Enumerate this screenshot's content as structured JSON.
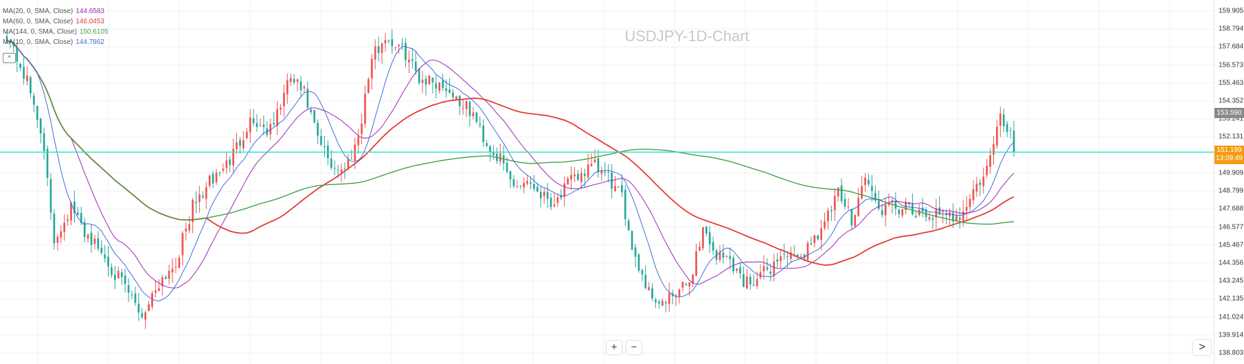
{
  "title": "USDJPY-1D-Chart",
  "colors": {
    "up": "#ef5350",
    "down": "#26a69a",
    "last_price_line": "#2de0c4",
    "grid": "#f0f0f0"
  },
  "legend": [
    {
      "label": "MA(20, 0, SMA, Close)",
      "value": "144.6583",
      "color": "#9c27b0"
    },
    {
      "label": "MA(60, 0, SMA, Close)",
      "value": "146.0453",
      "color": "#e53935"
    },
    {
      "label": "MA(144, 0, SMA, Close)",
      "value": "150.6105",
      "color": "#43a047"
    },
    {
      "label": "MA(10, 0, SMA, Close)",
      "value": "144.7862",
      "color": "#3f6bde"
    }
  ],
  "price_axis": {
    "ticks": [
      "159.905",
      "158.794",
      "157.684",
      "156.573",
      "155.463",
      "154.352",
      "153.241",
      "152.131",
      "149.909",
      "148.799",
      "147.688",
      "146.577",
      "145.467",
      "144.356",
      "143.245",
      "142.135",
      "141.024",
      "139.914",
      "138.803"
    ],
    "prev_close_badge": "153.590",
    "last_price_badge": "151.199",
    "countdown": "13:09:49"
  },
  "controls": {
    "zoom_in": "+",
    "zoom_out": "−",
    "collapse": "^",
    "scroll_right": ">"
  },
  "chart_data": {
    "type": "candlestick",
    "title": "USDJPY-1D-Chart",
    "ylim": [
      138.803,
      160.4
    ],
    "last_price": 151.199,
    "series": [
      {
        "name": "MA(20, 0, SMA, Close)",
        "last": 144.6583
      },
      {
        "name": "MA(60, 0, SMA, Close)",
        "last": 146.0453
      },
      {
        "name": "MA(144, 0, SMA, Close)",
        "last": 150.6105
      },
      {
        "name": "MA(10, 0, SMA, Close)",
        "last": 144.7862
      }
    ],
    "anchors": [
      [
        0,
        158.5
      ],
      [
        6,
        155.5
      ],
      [
        10,
        152.7
      ],
      [
        14,
        145.8
      ],
      [
        19,
        147.8
      ],
      [
        22,
        146.6
      ],
      [
        28,
        145.0
      ],
      [
        35,
        142.8
      ],
      [
        40,
        141.1
      ],
      [
        45,
        143.2
      ],
      [
        50,
        144.4
      ],
      [
        55,
        147.8
      ],
      [
        60,
        149.3
      ],
      [
        66,
        150.7
      ],
      [
        72,
        153.2
      ],
      [
        78,
        152.5
      ],
      [
        84,
        155.8
      ],
      [
        88,
        154.8
      ],
      [
        92,
        152.0
      ],
      [
        96,
        150.4
      ],
      [
        100,
        150.1
      ],
      [
        104,
        152.2
      ],
      [
        108,
        157.0
      ],
      [
        112,
        158.3
      ],
      [
        118,
        157.3
      ],
      [
        122,
        155.8
      ],
      [
        126,
        155.6
      ],
      [
        130,
        155.2
      ],
      [
        134,
        154.3
      ],
      [
        138,
        153.5
      ],
      [
        142,
        151.7
      ],
      [
        146,
        150.7
      ],
      [
        150,
        149.1
      ],
      [
        154,
        149.5
      ],
      [
        158,
        148.7
      ],
      [
        162,
        148.1
      ],
      [
        166,
        149.2
      ],
      [
        170,
        149.9
      ],
      [
        174,
        150.3
      ],
      [
        178,
        149.6
      ],
      [
        182,
        148.3
      ],
      [
        186,
        144.7
      ],
      [
        190,
        142.6
      ],
      [
        194,
        141.8
      ],
      [
        198,
        142.4
      ],
      [
        202,
        143.2
      ],
      [
        206,
        146.5
      ],
      [
        210,
        144.8
      ],
      [
        214,
        144.6
      ],
      [
        218,
        143.2
      ],
      [
        222,
        143.4
      ],
      [
        226,
        144.1
      ],
      [
        230,
        145.0
      ],
      [
        234,
        144.4
      ],
      [
        238,
        145.7
      ],
      [
        242,
        146.8
      ],
      [
        246,
        148.6
      ],
      [
        250,
        147.1
      ],
      [
        254,
        149.7
      ],
      [
        258,
        147.6
      ],
      [
        262,
        147.8
      ],
      [
        266,
        147.7
      ],
      [
        270,
        147.2
      ],
      [
        274,
        147.4
      ],
      [
        278,
        147.1
      ],
      [
        282,
        147.4
      ],
      [
        286,
        148.7
      ],
      [
        290,
        150.1
      ],
      [
        294,
        153.3
      ],
      [
        297,
        152.4
      ],
      [
        298,
        151.2
      ]
    ]
  }
}
